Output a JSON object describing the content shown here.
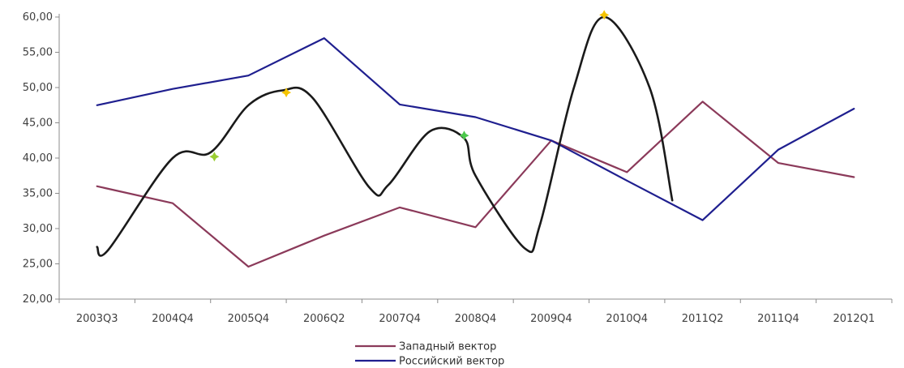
{
  "chart_data": {
    "type": "line",
    "title": "",
    "xlabel": "",
    "ylabel": "",
    "categories": [
      "2003Q3",
      "2004Q4",
      "2005Q4",
      "2006Q2",
      "2007Q4",
      "2008Q4",
      "2009Q4",
      "2010Q4",
      "2011Q2",
      "2011Q4",
      "2012Q1"
    ],
    "yticks": [
      "20,00",
      "25,00",
      "30,00",
      "35,00",
      "40,00",
      "45,00",
      "50,00",
      "55,00",
      "60,00"
    ],
    "ylim": [
      20,
      60
    ],
    "grid": false,
    "legend_position": "bottom",
    "series": [
      {
        "name": "Западный вектор",
        "color": "#8b3a5a",
        "values": [
          36.0,
          33.6,
          24.6,
          29.0,
          33.0,
          30.2,
          42.5,
          38.0,
          48.0,
          39.3,
          37.3
        ]
      },
      {
        "name": "Российский вектор",
        "color": "#1f1f8f",
        "values": [
          47.5,
          49.8,
          51.7,
          57.0,
          47.6,
          45.8,
          42.5,
          36.8,
          31.2,
          41.2,
          47.0
        ]
      },
      {
        "name": "",
        "color": "#1a1a1a",
        "smooth": true,
        "x": [
          0.0,
          0.15,
          1.0,
          1.5,
          2.0,
          2.45,
          2.85,
          3.6,
          3.85,
          4.4,
          4.85,
          5.0,
          5.65,
          5.85,
          6.3,
          6.7,
          7.3,
          7.6
        ],
        "values": [
          27.4,
          27.0,
          40.0,
          40.8,
          47.5,
          49.6,
          48.5,
          35.8,
          36.2,
          43.8,
          42.8,
          37.5,
          27.2,
          30.5,
          50.0,
          60.0,
          50.0,
          34.0
        ]
      }
    ],
    "markers": [
      {
        "x": 1.55,
        "value": 40.2,
        "color": "#9acd32"
      },
      {
        "x": 2.5,
        "value": 49.3,
        "color": "#f5c400"
      },
      {
        "x": 4.85,
        "value": 43.2,
        "color": "#4cc84c"
      },
      {
        "x": 6.7,
        "value": 60.3,
        "color": "#f5c400"
      }
    ]
  }
}
